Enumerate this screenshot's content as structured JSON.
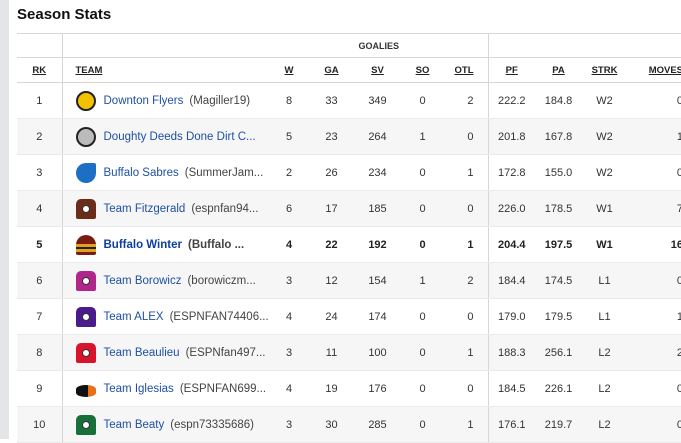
{
  "title": "Season Stats",
  "group_header": "GOALIES",
  "columns": [
    "RK",
    "TEAM",
    "W",
    "GA",
    "SV",
    "SO",
    "OTL",
    "PF",
    "PA",
    "STRK",
    "MOVES"
  ],
  "rows": [
    {
      "rk": "1",
      "team": "Downton Flyers",
      "owner": "(Magiller19)",
      "w": "8",
      "ga": "33",
      "sv": "349",
      "so": "0",
      "otl": "2",
      "pf": "222.2",
      "pa": "184.8",
      "strk": "W2",
      "moves": "0",
      "logo": "smiley-face",
      "color": "#f2c200"
    },
    {
      "rk": "2",
      "team": "Doughty Deeds Done Dirt C...",
      "owner": "",
      "w": "5",
      "ga": "23",
      "sv": "264",
      "so": "1",
      "otl": "0",
      "pf": "201.8",
      "pa": "167.8",
      "strk": "W2",
      "moves": "1",
      "logo": "goalie-mask",
      "color": "#bbbbbb"
    },
    {
      "rk": "3",
      "team": "Buffalo Sabres",
      "owner": "(SummerJam...",
      "w": "2",
      "ga": "26",
      "sv": "234",
      "so": "0",
      "otl": "1",
      "pf": "172.8",
      "pa": "155.0",
      "strk": "W2",
      "moves": "0",
      "logo": "sabres",
      "color": "#1d6fc4"
    },
    {
      "rk": "4",
      "team": "Team Fitzgerald",
      "owner": "(espnfan94...",
      "w": "6",
      "ga": "17",
      "sv": "185",
      "so": "0",
      "otl": "0",
      "pf": "226.0",
      "pa": "178.5",
      "strk": "W1",
      "moves": "7",
      "logo": "jersey",
      "color": "#6b2d1a"
    },
    {
      "rk": "5",
      "team": "Buffalo Winter",
      "owner": "(Buffalo ...",
      "w": "4",
      "ga": "22",
      "sv": "192",
      "so": "0",
      "otl": "1",
      "pf": "204.4",
      "pa": "197.5",
      "strk": "W1",
      "moves": "16",
      "logo": "winter-hat",
      "color": "#7a1a10",
      "highlight": true
    },
    {
      "rk": "6",
      "team": "Team Borowicz",
      "owner": "(borowiczm...",
      "w": "3",
      "ga": "12",
      "sv": "154",
      "so": "1",
      "otl": "2",
      "pf": "184.4",
      "pa": "174.5",
      "strk": "L1",
      "moves": "0",
      "logo": "jersey",
      "color": "#b0268a"
    },
    {
      "rk": "7",
      "team": "Team ALEX",
      "owner": "(ESPNFAN74406...",
      "w": "4",
      "ga": "24",
      "sv": "174",
      "so": "0",
      "otl": "0",
      "pf": "179.0",
      "pa": "179.5",
      "strk": "L1",
      "moves": "1",
      "logo": "jersey",
      "color": "#4b1a8c"
    },
    {
      "rk": "8",
      "team": "Team Beaulieu",
      "owner": "(ESPNfan497...",
      "w": "3",
      "ga": "11",
      "sv": "100",
      "so": "0",
      "otl": "1",
      "pf": "188.3",
      "pa": "256.1",
      "strk": "L2",
      "moves": "2",
      "logo": "jersey",
      "color": "#d8142c"
    },
    {
      "rk": "9",
      "team": "Team Iglesias",
      "owner": "(ESPNFAN699...",
      "w": "4",
      "ga": "19",
      "sv": "176",
      "so": "0",
      "otl": "0",
      "pf": "184.5",
      "pa": "226.1",
      "strk": "L2",
      "moves": "0",
      "logo": "flaming-puck",
      "color": "#1a1a1a"
    },
    {
      "rk": "10",
      "team": "Team Beaty",
      "owner": "(espn73335686)",
      "w": "3",
      "ga": "30",
      "sv": "285",
      "so": "0",
      "otl": "1",
      "pf": "176.1",
      "pa": "219.7",
      "strk": "L2",
      "moves": "0",
      "logo": "jersey",
      "color": "#17703a"
    }
  ]
}
